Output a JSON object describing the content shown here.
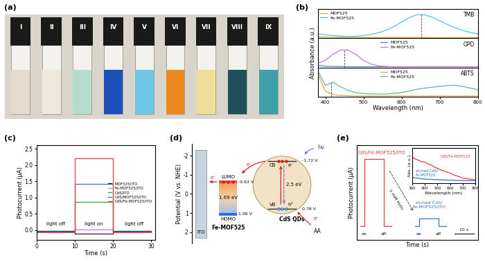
{
  "photo": {
    "label": "(a)",
    "vials": [
      {
        "label": "I",
        "color": "#e6dccb"
      },
      {
        "label": "II",
        "color": "#efe9dd"
      },
      {
        "label": "III",
        "color": "#b5dccf"
      },
      {
        "label": "IV",
        "color": "#1d4fb8"
      },
      {
        "label": "V",
        "color": "#6ec6e4"
      },
      {
        "label": "VI",
        "color": "#ec8a1c"
      },
      {
        "label": "VII",
        "color": "#f0dd9a"
      },
      {
        "label": "VIII",
        "color": "#1f4f5a"
      },
      {
        "label": "IX",
        "color": "#3f9fa8"
      }
    ]
  },
  "chart_data": [
    {
      "type": "line",
      "label": "(b)",
      "annotation": "TMB",
      "x": [
        380,
        400,
        420,
        440,
        460,
        480,
        500,
        520,
        540,
        560,
        580,
        600,
        620,
        640,
        660,
        680,
        700,
        720,
        740,
        760,
        780,
        800
      ],
      "series": [
        {
          "name": "MOF525",
          "color": "#e8a33a",
          "values": [
            0.05,
            0.04,
            0.035,
            0.03,
            0.03,
            0.03,
            0.03,
            0.025,
            0.025,
            0.025,
            0.025,
            0.025,
            0.025,
            0.025,
            0.025,
            0.02,
            0.02,
            0.02,
            0.02,
            0.02,
            0.02,
            0.02
          ]
        },
        {
          "name": "Fe-MOF525",
          "color": "#4fc3e6",
          "peak": 652,
          "values": [
            0.15,
            0.12,
            0.09,
            0.07,
            0.06,
            0.07,
            0.09,
            0.13,
            0.19,
            0.28,
            0.4,
            0.55,
            0.7,
            0.8,
            0.8,
            0.72,
            0.6,
            0.47,
            0.36,
            0.27,
            0.2,
            0.15
          ]
        }
      ],
      "xlim": [
        380,
        800
      ],
      "xticks": [
        400,
        500,
        600,
        700,
        800
      ],
      "ylim": [
        0,
        1
      ],
      "yticks": [],
      "legend": "upper left",
      "tick_labels": false
    },
    {
      "type": "line",
      "annotation": "OPD",
      "y_label": "Absorbance (a.u.)",
      "x": [
        380,
        400,
        420,
        440,
        460,
        480,
        500,
        520,
        540,
        560,
        580,
        600,
        620,
        640,
        660,
        680,
        700,
        720,
        740,
        760,
        780,
        800
      ],
      "series": [
        {
          "name": "MOF525",
          "color": "#4a86c8",
          "values": [
            0.08,
            0.05,
            0.04,
            0.035,
            0.03,
            0.03,
            0.03,
            0.03,
            0.03,
            0.03,
            0.03,
            0.03,
            0.03,
            0.03,
            0.03,
            0.03,
            0.03,
            0.03,
            0.03,
            0.03,
            0.03,
            0.03
          ]
        },
        {
          "name": "Fe-MOF525",
          "color": "#c27bd6",
          "peak": 450,
          "values": [
            0.15,
            0.25,
            0.45,
            0.6,
            0.6,
            0.45,
            0.25,
            0.12,
            0.06,
            0.04,
            0.03,
            0.03,
            0.03,
            0.03,
            0.03,
            0.03,
            0.03,
            0.03,
            0.03,
            0.03,
            0.03,
            0.03
          ]
        }
      ],
      "xlim": [
        380,
        800
      ],
      "xticks": [
        400,
        500,
        600,
        700,
        800
      ],
      "ylim": [
        0,
        1
      ],
      "yticks": [],
      "legend": "upper center",
      "tick_labels": false
    },
    {
      "type": "line",
      "annotation": "ABTS",
      "x_label": "Wavelength (nm)",
      "x": [
        380,
        400,
        420,
        440,
        460,
        480,
        500,
        520,
        540,
        560,
        580,
        600,
        620,
        640,
        660,
        680,
        700,
        720,
        740,
        760,
        780,
        800
      ],
      "series": [
        {
          "name": "MOF525",
          "color": "#e8a33a",
          "values": [
            0.8,
            0.2,
            0.08,
            0.05,
            0.04,
            0.03,
            0.03,
            0.03,
            0.03,
            0.03,
            0.03,
            0.03,
            0.03,
            0.03,
            0.03,
            0.03,
            0.03,
            0.03,
            0.03,
            0.03,
            0.03,
            0.03
          ]
        },
        {
          "name": "Fe-MOF525",
          "color": "#5bb89a",
          "peak": 415,
          "values": [
            0.9,
            0.4,
            0.5,
            0.35,
            0.22,
            0.15,
            0.12,
            0.1,
            0.1,
            0.1,
            0.12,
            0.15,
            0.2,
            0.26,
            0.3,
            0.33,
            0.36,
            0.39,
            0.4,
            0.36,
            0.3,
            0.25
          ]
        }
      ],
      "xlim": [
        380,
        800
      ],
      "xticks": [
        400,
        500,
        600,
        700,
        800
      ],
      "ylim": [
        0,
        1
      ],
      "yticks": [],
      "legend": "upper center",
      "tick_labels": "x"
    },
    {
      "type": "line",
      "label": "(c)",
      "x_label": "Time (s)",
      "y_label": "Photocurrent (μA)",
      "x": [
        0,
        10,
        10,
        20,
        20,
        30
      ],
      "series": [
        {
          "name": "MOF525/ITO",
          "color": "#222222",
          "values": [
            -0.03,
            -0.03,
            -0.12,
            -0.12,
            -0.03,
            -0.03
          ]
        },
        {
          "name": "Fe-MOF525/ITO",
          "color": "#e86ad6",
          "values": [
            -0.04,
            -0.04,
            0.02,
            0.02,
            -0.04,
            -0.04
          ]
        },
        {
          "name": "CdS/ITO",
          "color": "#2e9e4f",
          "values": [
            -0.05,
            -0.05,
            0.87,
            0.87,
            -0.05,
            -0.05
          ]
        },
        {
          "name": "CdS/MOF525/ITO",
          "color": "#2f6fd6",
          "values": [
            -0.06,
            -0.06,
            1.42,
            1.42,
            -0.06,
            -0.06
          ]
        },
        {
          "name": "CdS/Fe-MOF525/ITO",
          "color": "#f0383c",
          "values": [
            -0.07,
            -0.07,
            2.2,
            2.2,
            -0.07,
            -0.07
          ]
        }
      ],
      "xlim": [
        0,
        31
      ],
      "xticks": [
        0,
        10,
        20,
        30
      ],
      "ylim": [
        -0.3,
        2.6
      ],
      "yticks": [
        {
          "value": 0,
          "label": "0.0"
        },
        0.5,
        {
          "value": 1,
          "label": "1.0"
        },
        1.5,
        {
          "value": 2,
          "label": "2.0"
        },
        2.5
      ],
      "legend": "center right",
      "light_switch": [
        10,
        20
      ],
      "annotations": [
        "light off",
        "light on",
        "light off"
      ]
    },
    {
      "type": "line",
      "label": "(e)",
      "x_label": "Time (s)",
      "y_label": "Photocurrent (μA)",
      "series": [
        {
          "name": "CdS/Fe-MOF525/ITO",
          "color": "#f0383c",
          "x": [
            0,
            2,
            2,
            12,
            12,
            16
          ],
          "values": [
            0,
            0,
            2.25,
            2.25,
            0,
            0
          ]
        },
        {
          "name": "etched CdS/\nFe-MOF525/ITO",
          "color": "#2f6fd6",
          "x": [
            28,
            30,
            30,
            40,
            40,
            44
          ],
          "values": [
            0,
            0,
            0.25,
            0.25,
            0,
            0
          ]
        }
      ],
      "xlim": [
        -2,
        60
      ],
      "ylim": [
        -0.45,
        2.7
      ],
      "xticks": [],
      "yticks": [],
      "tick_labels": false,
      "switch_labels": [
        "on",
        "off"
      ],
      "arrow_label": "1 mM H₂O₂",
      "scale_bar": {
        "value": 10,
        "label": "10 s"
      }
    },
    {
      "type": "line",
      "x_label": "Wavelength (nm)",
      "y_label": "Abs. (a.u.)",
      "x": [
        300,
        325,
        350,
        375,
        400,
        425,
        450,
        475,
        500,
        525,
        550,
        575,
        600,
        625,
        650,
        675,
        700,
        725,
        750,
        775,
        800
      ],
      "series": [
        {
          "name": "CdS/Fe-MOF525",
          "color": "#f0383c",
          "values": [
            0.95,
            0.9,
            0.85,
            0.8,
            0.78,
            0.72,
            0.68,
            0.6,
            0.55,
            0.5,
            0.45,
            0.42,
            0.38,
            0.32,
            0.28,
            0.24,
            0.2,
            0.18,
            0.16,
            0.15,
            0.14
          ]
        },
        {
          "name": "etched CdS/\nFe-MOF525",
          "color": "#2f6fd6",
          "values": [
            0.22,
            0.2,
            0.19,
            0.17,
            0.16,
            0.15,
            0.15,
            0.14,
            0.14,
            0.13,
            0.13,
            0.12,
            0.12,
            0.12,
            0.11,
            0.11,
            0.11,
            0.1,
            0.1,
            0.1,
            0.1
          ]
        }
      ],
      "xlim": [
        300,
        800
      ],
      "xticks": [
        300,
        400,
        500,
        600,
        700,
        800
      ],
      "ylim": [
        0,
        1.3
      ],
      "yticks": [],
      "tick_labels": "x"
    }
  ],
  "diagram": {
    "label": "(d)",
    "y_label": "Potential (V vs. NHE)",
    "ylim": [
      2.6,
      -2.6
    ],
    "yticks": [
      -2,
      -1,
      0,
      1,
      2
    ],
    "electrode": "ITO",
    "mof": {
      "name": "Fe-MOF525",
      "lumo": {
        "label": "LUMO",
        "value": -0.63,
        "value_label": "-0.63 V"
      },
      "homo": {
        "label": "HOMO",
        "value": 1.06,
        "value_label": "1.06 V"
      },
      "gap_label": "1.69 eV"
    },
    "qd": {
      "name": "CdS QDs",
      "cb": {
        "label": "CB",
        "value": -1.72,
        "value_label": "-1.72 V"
      },
      "vb": {
        "label": "VB",
        "value": 0.78,
        "value_label": "0.78 V"
      },
      "gap_label": "2.5 eV",
      "light": "hν",
      "electron": "e⁻",
      "hole": "h⁺"
    },
    "donor": "AA"
  }
}
